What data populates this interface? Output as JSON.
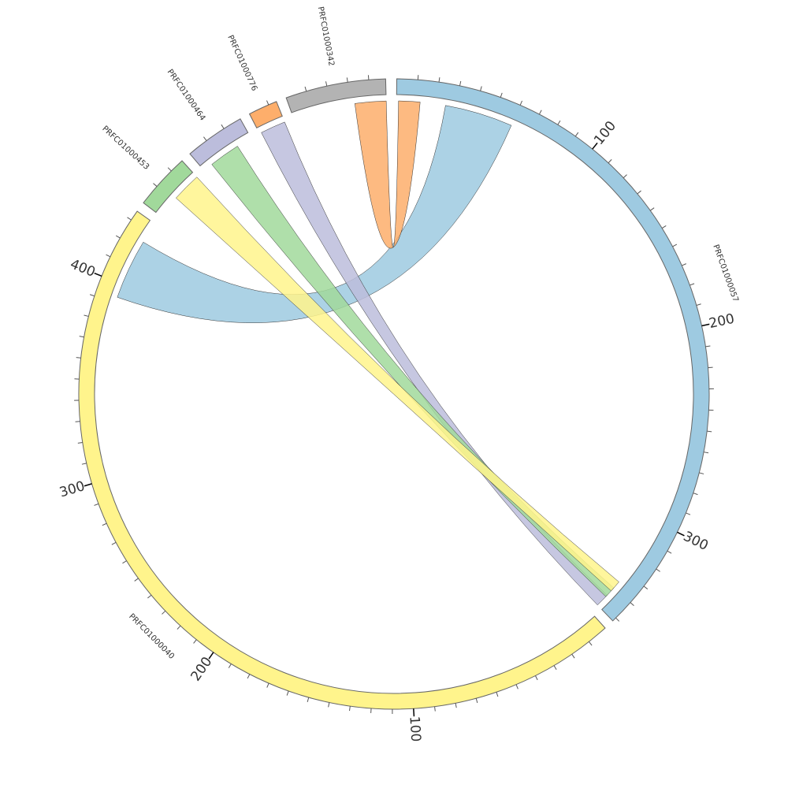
{
  "chart_data": {
    "type": "chord",
    "units_per_degree": 2.597,
    "gap_degrees": 1.9,
    "sectors": [
      {
        "name": "PRFC01000057",
        "length": 352,
        "color": "#9ecae1",
        "ticks": [
          "100",
          "200",
          "300"
        ]
      },
      {
        "name": "PRFC01000040",
        "length": 435,
        "color": "#fff48c",
        "ticks": [
          "100",
          "200",
          "300",
          "400"
        ]
      },
      {
        "name": "PRFC01000453",
        "length": 27,
        "color": "#a1d99b",
        "ticks": []
      },
      {
        "name": "PRFC01000464",
        "length": 29,
        "color": "#bcbddc",
        "ticks": []
      },
      {
        "name": "PRFC01000776",
        "length": 14,
        "color": "#fdae6b",
        "ticks": []
      },
      {
        "name": "PRFC01000342",
        "length": 48,
        "color": "#b3b3b3",
        "ticks": []
      }
    ],
    "chords": [
      {
        "from": {
          "sector": 0,
          "start": 25,
          "end": 60
        },
        "to": {
          "sector": 1,
          "start": 393,
          "end": 424
        },
        "color": "#9ecae1"
      },
      {
        "from": {
          "sector": 5,
          "start": 32,
          "end": 48
        },
        "to": {
          "sector": 0,
          "start": 1,
          "end": 12
        },
        "color": "#fdae6b"
      },
      {
        "from": {
          "sector": 4,
          "start": 1,
          "end": 14
        },
        "to": {
          "sector": 0,
          "start": 345,
          "end": 352
        },
        "color": "#bcbddc"
      },
      {
        "from": {
          "sector": 3,
          "start": 5,
          "end": 21
        },
        "to": {
          "sector": 0,
          "start": 340,
          "end": 346
        },
        "color": "#a1d99b"
      },
      {
        "from": {
          "sector": 2,
          "start": 12,
          "end": 27
        },
        "to": {
          "sector": 0,
          "start": 336,
          "end": 342
        },
        "color": "#fff48c"
      }
    ]
  }
}
